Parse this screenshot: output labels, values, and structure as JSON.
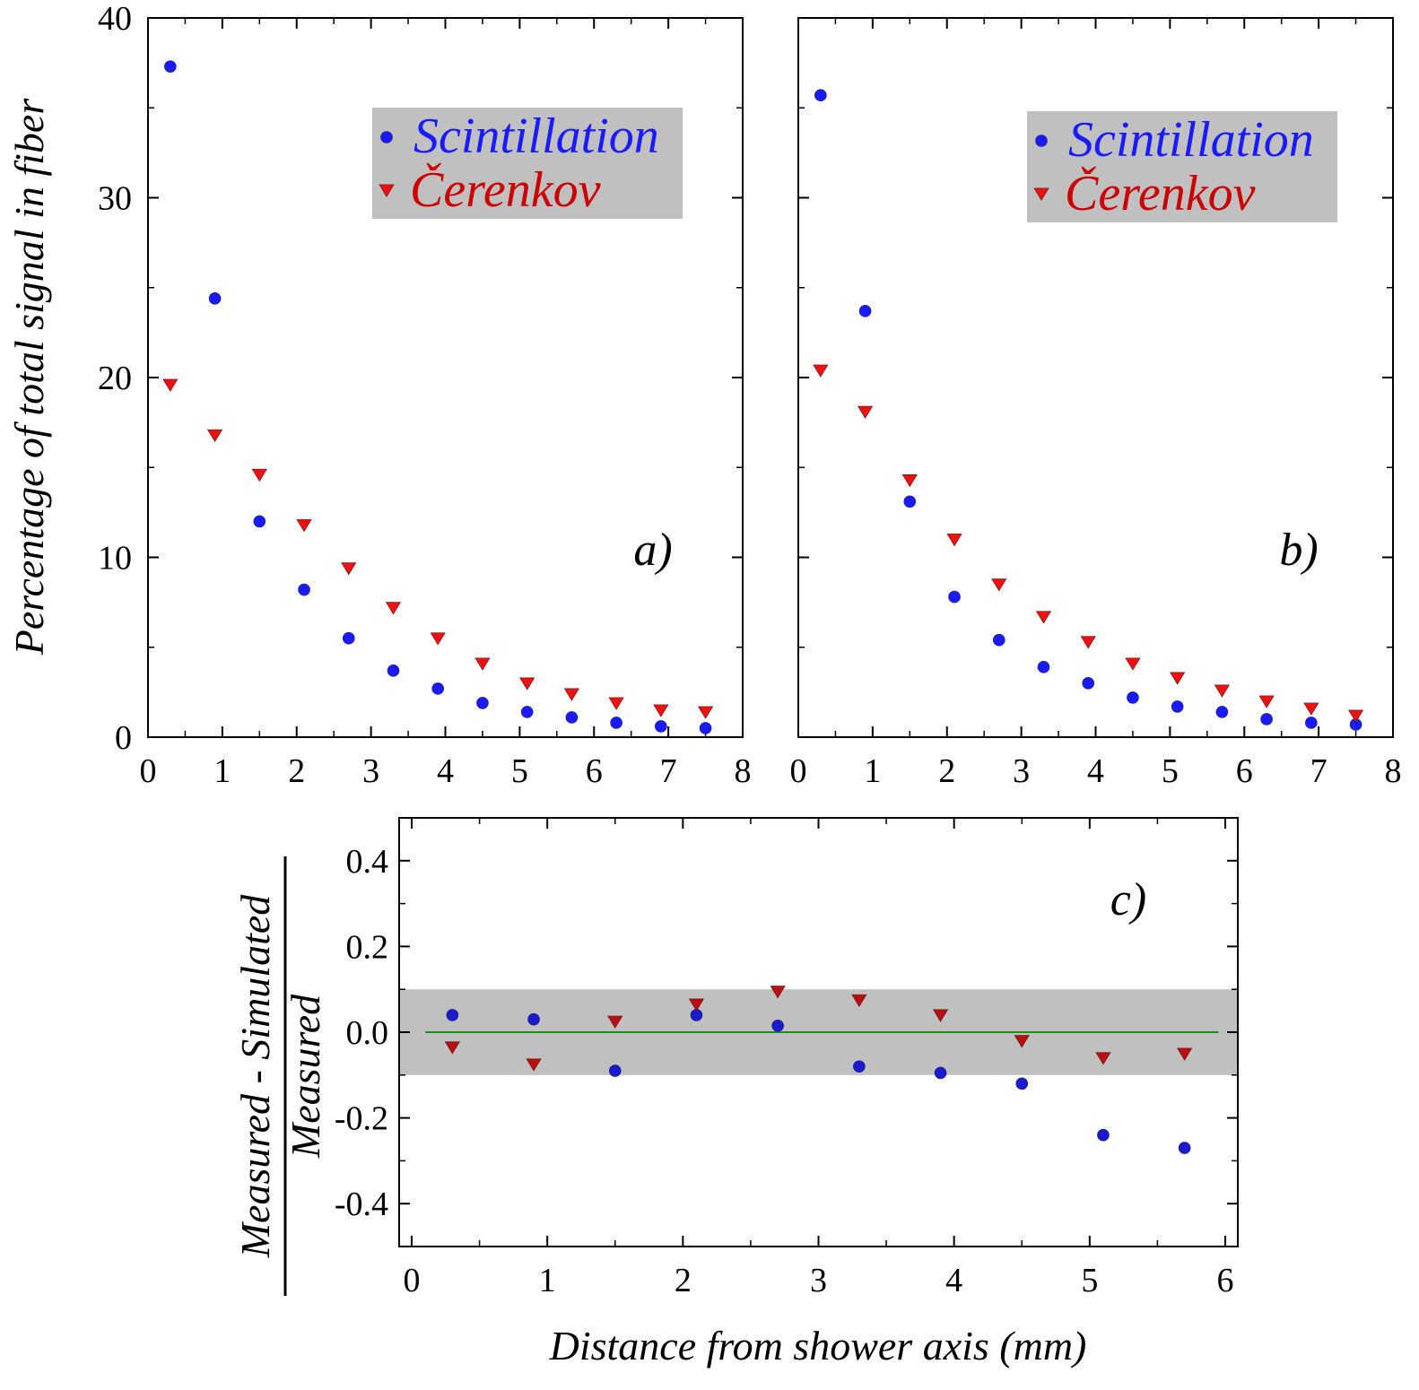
{
  "figure": {
    "ylabel_top": "Percentage of total signal in fiber",
    "xlabel_bottom": "Distance from shower axis (mm)",
    "ylabel_c_numerator": "Measured - Simulated",
    "ylabel_c_denominator": "Measured"
  },
  "colors": {
    "scintillation": "#1a1aff",
    "cerenkov": "#ee1111",
    "scintillation_c": "#1a1ad0",
    "cerenkov_c": "#b81010",
    "band": "#c0c0c0",
    "zero_line": "#228822"
  },
  "chart_data": [
    {
      "type": "scatter",
      "panel": "a)",
      "xlim": [
        0,
        8
      ],
      "ylim": [
        0,
        40
      ],
      "x_ticks": [
        "0",
        "1",
        "2",
        "3",
        "4",
        "5",
        "6",
        "7",
        "8"
      ],
      "y_ticks": [
        "0",
        "10",
        "20",
        "30",
        "40"
      ],
      "legend": {
        "placement": "top-right",
        "entries": [
          "Scintillation",
          "Čerenkov"
        ]
      },
      "series": [
        {
          "name": "Scintillation",
          "marker": "circle",
          "x": [
            0.3,
            0.9,
            1.5,
            2.1,
            2.7,
            3.3,
            3.9,
            4.5,
            5.1,
            5.7,
            6.3,
            6.9,
            7.5
          ],
          "y": [
            37.3,
            24.4,
            12.0,
            8.2,
            5.5,
            3.7,
            2.7,
            1.9,
            1.4,
            1.1,
            0.8,
            0.6,
            0.5
          ]
        },
        {
          "name": "Čerenkov",
          "marker": "triangle-down",
          "x": [
            0.3,
            0.9,
            1.5,
            2.1,
            2.7,
            3.3,
            3.9,
            4.5,
            5.1,
            5.7,
            6.3,
            6.9,
            7.5
          ],
          "y": [
            19.6,
            16.8,
            14.6,
            11.8,
            9.4,
            7.2,
            5.5,
            4.1,
            3.0,
            2.4,
            1.9,
            1.5,
            1.4
          ]
        }
      ]
    },
    {
      "type": "scatter",
      "panel": "b)",
      "xlim": [
        0,
        8
      ],
      "ylim": [
        0,
        40
      ],
      "x_ticks": [
        "0",
        "1",
        "2",
        "3",
        "4",
        "5",
        "6",
        "7",
        "8"
      ],
      "legend": {
        "placement": "top-right",
        "entries": [
          "Scintillation",
          "Čerenkov"
        ]
      },
      "series": [
        {
          "name": "Scintillation",
          "marker": "circle",
          "x": [
            0.3,
            0.9,
            1.5,
            2.1,
            2.7,
            3.3,
            3.9,
            4.5,
            5.1,
            5.7,
            6.3,
            6.9,
            7.5
          ],
          "y": [
            35.7,
            23.7,
            13.1,
            7.8,
            5.4,
            3.9,
            3.0,
            2.2,
            1.7,
            1.4,
            1.0,
            0.8,
            0.7
          ]
        },
        {
          "name": "Čerenkov",
          "marker": "triangle-down",
          "x": [
            0.3,
            0.9,
            1.5,
            2.1,
            2.7,
            3.3,
            3.9,
            4.5,
            5.1,
            5.7,
            6.3,
            6.9,
            7.5
          ],
          "y": [
            20.4,
            18.1,
            14.3,
            11.0,
            8.5,
            6.7,
            5.3,
            4.1,
            3.3,
            2.6,
            2.0,
            1.6,
            1.2
          ]
        }
      ]
    },
    {
      "type": "scatter",
      "panel": "c)",
      "xlim": [
        0,
        6
      ],
      "ylim": [
        -0.5,
        0.5
      ],
      "x_ticks": [
        "0",
        "1",
        "2",
        "3",
        "4",
        "5",
        "6"
      ],
      "y_ticks": [
        "-0.4",
        "-0.2",
        "0.0",
        "0.2",
        "0.4"
      ],
      "band": [
        -0.1,
        0.1
      ],
      "reference_line": 0.0,
      "series": [
        {
          "name": "Scintillation",
          "marker": "circle",
          "x": [
            0.3,
            0.9,
            1.5,
            2.1,
            2.7,
            3.3,
            3.9,
            4.5,
            5.1,
            5.7
          ],
          "y": [
            0.04,
            0.03,
            -0.09,
            0.04,
            0.015,
            -0.08,
            -0.095,
            -0.12,
            -0.24,
            -0.27
          ]
        },
        {
          "name": "Čerenkov",
          "marker": "triangle-down",
          "x": [
            0.3,
            0.9,
            1.5,
            2.1,
            2.7,
            3.3,
            3.9,
            4.5,
            5.1,
            5.7
          ],
          "y": [
            -0.035,
            -0.075,
            0.025,
            0.065,
            0.095,
            0.075,
            0.04,
            -0.02,
            -0.06,
            -0.05
          ]
        }
      ]
    }
  ]
}
